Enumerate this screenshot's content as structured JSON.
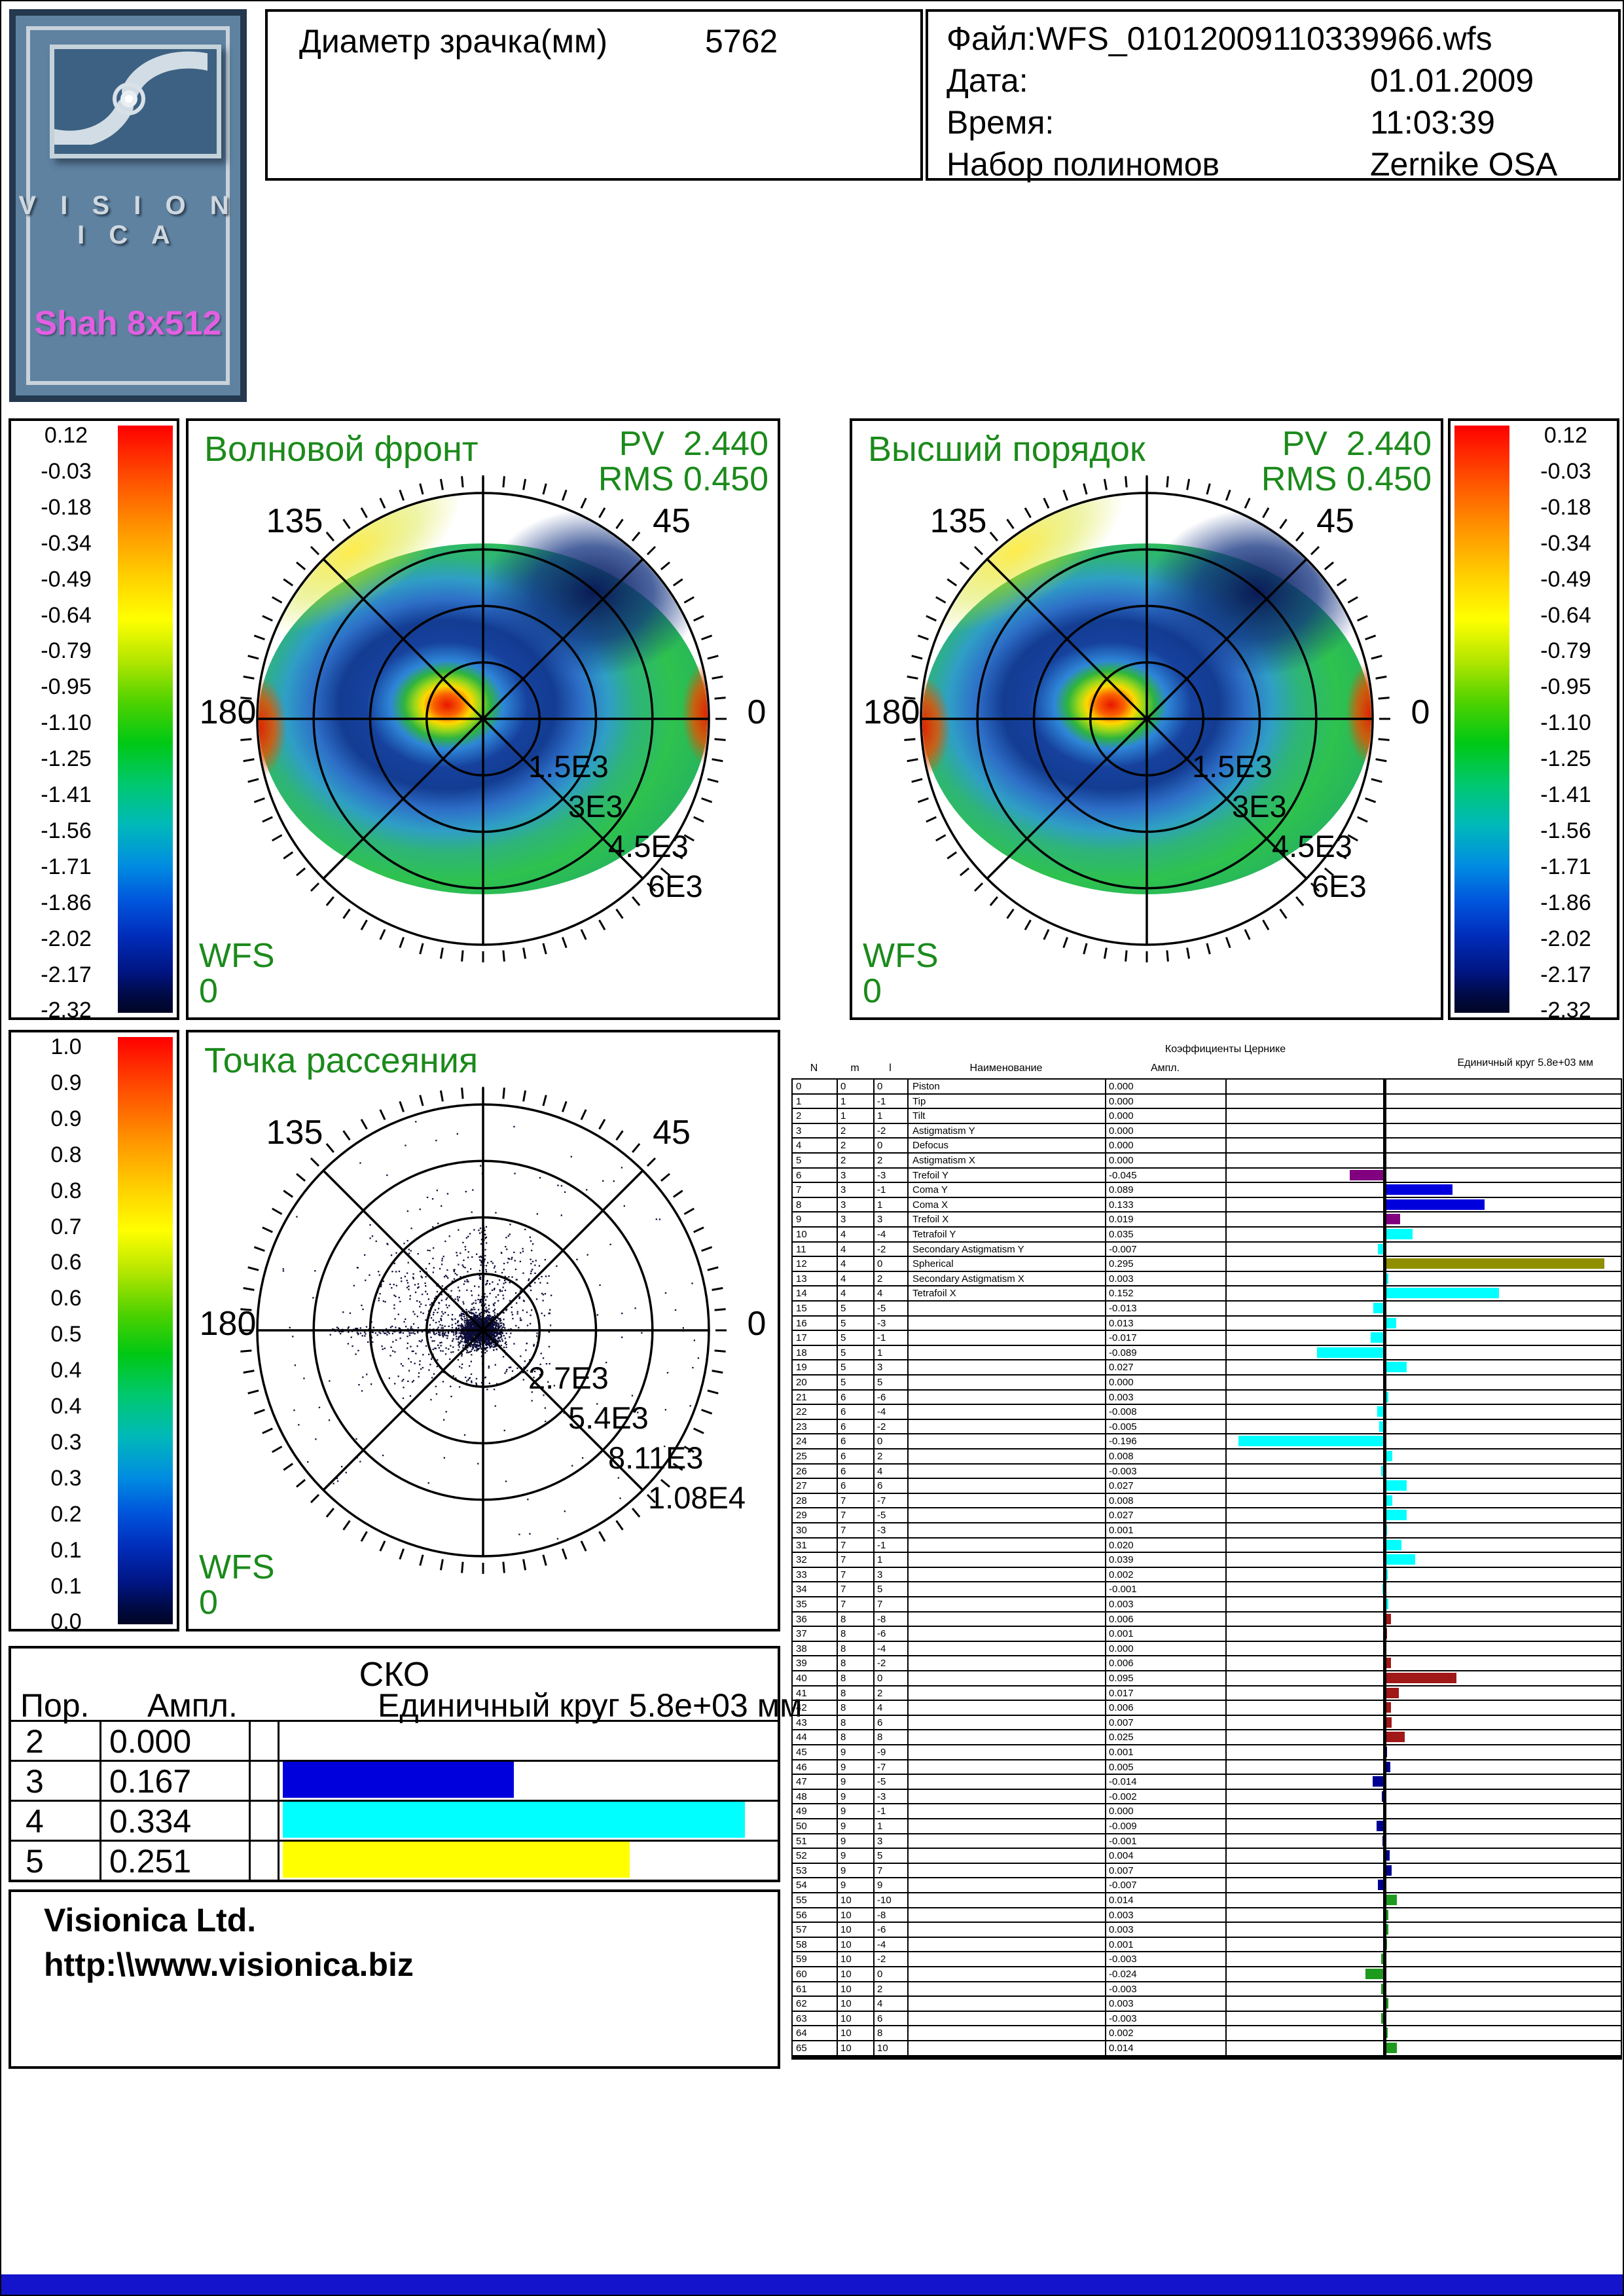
{
  "logo": {
    "brand": "V I S I O N I C A",
    "model": "Shah 8x512"
  },
  "pupil": {
    "label": "Диаметр зрачка(мм)",
    "value": "5762"
  },
  "file_info": {
    "file_line": "Файл:WFS_01012009110339966.wfs",
    "date_label": "Дата:",
    "date_value": "01.01.2009",
    "time_label": "Время:",
    "time_value": "11:03:39",
    "poly_label": "Набор полиномов",
    "poly_value": "Zernike OSA"
  },
  "colors": {
    "green_text": "#1b8a1b",
    "scatter_dot": "#0c0c38",
    "bottom_bar": "#1414cc",
    "zernike_palette": {
      "purple": "#800080",
      "blue": "#0000dd",
      "cyan": "#00ffff",
      "olive": "#8f8f00",
      "darkred": "#a01818",
      "navy": "#000090",
      "green": "#1e9a1e"
    }
  },
  "colorbar_wavefront": {
    "labels": [
      "0.12",
      "-0.03",
      "-0.18",
      "-0.34",
      "-0.49",
      "-0.64",
      "-0.79",
      "-0.95",
      "-1.10",
      "-1.25",
      "-1.41",
      "-1.56",
      "-1.71",
      "-1.86",
      "-2.02",
      "-2.17",
      "-2.32"
    ]
  },
  "colorbar_spot": {
    "labels": [
      "1.0",
      "0.9",
      "0.9",
      "0.8",
      "0.8",
      "0.7",
      "0.6",
      "0.6",
      "0.5",
      "0.4",
      "0.4",
      "0.3",
      "0.3",
      "0.2",
      "0.1",
      "0.1",
      "0.0"
    ]
  },
  "panels": {
    "wavefront": {
      "title": "Волновой фронт",
      "pv_label": "PV",
      "pv_value": "2.440",
      "rms_label": "RMS",
      "rms_value": "0.450",
      "wfs_label": "WFS",
      "wfs_value": "0",
      "angle_labels": [
        "135",
        "45",
        "180",
        "0"
      ],
      "radial_labels": [
        "1.5E3",
        "3E3",
        "4.5E3",
        "6E3"
      ]
    },
    "higher_order": {
      "title": "Высший порядок",
      "pv_label": "PV",
      "pv_value": "2.440",
      "rms_label": "RMS",
      "rms_value": "0.450",
      "wfs_label": "WFS",
      "wfs_value": "0",
      "angle_labels": [
        "135",
        "45",
        "180",
        "0"
      ],
      "radial_labels": [
        "1.5E3",
        "3E3",
        "4.5E3",
        "6E3"
      ]
    },
    "spot": {
      "title": "Точка рассеяния",
      "wfs_label": "WFS",
      "wfs_value": "0",
      "angle_labels": [
        "135",
        "45",
        "180",
        "0"
      ],
      "radial_labels": [
        "2.7E3",
        "5.4E3",
        "8.11E3",
        "1.08E4"
      ]
    }
  },
  "sko": {
    "title": "СКО",
    "col_order": "Пор.",
    "col_ampl": "Ампл.",
    "col_unit": "Единичный круг 5.8e+03 мм",
    "rows": [
      {
        "order": "2",
        "ampl": "0.000",
        "value": 0.0,
        "color": "none"
      },
      {
        "order": "3",
        "ampl": "0.167",
        "value": 0.167,
        "color": "#0000dd"
      },
      {
        "order": "4",
        "ampl": "0.334",
        "value": 0.334,
        "color": "#00ffff"
      },
      {
        "order": "5",
        "ampl": "0.251",
        "value": 0.251,
        "color": "#ffff00"
      }
    ]
  },
  "company": {
    "name": "Visionica Ltd.",
    "url": "http:\\\\www.visionica.biz"
  },
  "zernike": {
    "header": "Коэффициенты Цернике",
    "unit_header": "Единичный круг 5.8e+03 мм",
    "col_n": "N",
    "col_m": "m",
    "col_l": "l",
    "col_name": "Наименование",
    "col_ampl": "Ампл.",
    "rows": [
      {
        "n": "0",
        "m": "0",
        "l": "0",
        "name": "Piston",
        "a": "0.000"
      },
      {
        "n": "1",
        "m": "1",
        "l": "-1",
        "name": "Tip",
        "a": "0.000"
      },
      {
        "n": "2",
        "m": "1",
        "l": "1",
        "name": "Tilt",
        "a": "0.000"
      },
      {
        "n": "3",
        "m": "2",
        "l": "-2",
        "name": "Astigmatism Y",
        "a": "0.000"
      },
      {
        "n": "4",
        "m": "2",
        "l": "0",
        "name": "Defocus",
        "a": "0.000"
      },
      {
        "n": "5",
        "m": "2",
        "l": "2",
        "name": "Astigmatism X",
        "a": "0.000"
      },
      {
        "n": "6",
        "m": "3",
        "l": "-3",
        "name": "Trefoil Y",
        "a": "-0.045"
      },
      {
        "n": "7",
        "m": "3",
        "l": "-1",
        "name": "Coma Y",
        "a": "0.089"
      },
      {
        "n": "8",
        "m": "3",
        "l": "1",
        "name": "Coma X",
        "a": "0.133"
      },
      {
        "n": "9",
        "m": "3",
        "l": "3",
        "name": "Trefoil X",
        "a": "0.019"
      },
      {
        "n": "10",
        "m": "4",
        "l": "-4",
        "name": "Tetrafoil Y",
        "a": "0.035"
      },
      {
        "n": "11",
        "m": "4",
        "l": "-2",
        "name": "Secondary Astigmatism Y",
        "a": "-0.007"
      },
      {
        "n": "12",
        "m": "4",
        "l": "0",
        "name": "Spherical",
        "a": "0.295"
      },
      {
        "n": "13",
        "m": "4",
        "l": "2",
        "name": "Secondary Astigmatism X",
        "a": "0.003"
      },
      {
        "n": "14",
        "m": "4",
        "l": "4",
        "name": "Tetrafoil X",
        "a": "0.152"
      },
      {
        "n": "15",
        "m": "5",
        "l": "-5",
        "name": "",
        "a": "-0.013"
      },
      {
        "n": "16",
        "m": "5",
        "l": "-3",
        "name": "",
        "a": "0.013"
      },
      {
        "n": "17",
        "m": "5",
        "l": "-1",
        "name": "",
        "a": "-0.017"
      },
      {
        "n": "18",
        "m": "5",
        "l": "1",
        "name": "",
        "a": "-0.089"
      },
      {
        "n": "19",
        "m": "5",
        "l": "3",
        "name": "",
        "a": "0.027"
      },
      {
        "n": "20",
        "m": "5",
        "l": "5",
        "name": "",
        "a": "0.000"
      },
      {
        "n": "21",
        "m": "6",
        "l": "-6",
        "name": "",
        "a": "0.003"
      },
      {
        "n": "22",
        "m": "6",
        "l": "-4",
        "name": "",
        "a": "-0.008"
      },
      {
        "n": "23",
        "m": "6",
        "l": "-2",
        "name": "",
        "a": "-0.005"
      },
      {
        "n": "24",
        "m": "6",
        "l": "0",
        "name": "",
        "a": "-0.196"
      },
      {
        "n": "25",
        "m": "6",
        "l": "2",
        "name": "",
        "a": "0.008"
      },
      {
        "n": "26",
        "m": "6",
        "l": "4",
        "name": "",
        "a": "-0.003"
      },
      {
        "n": "27",
        "m": "6",
        "l": "6",
        "name": "",
        "a": "0.027"
      },
      {
        "n": "28",
        "m": "7",
        "l": "-7",
        "name": "",
        "a": "0.008"
      },
      {
        "n": "29",
        "m": "7",
        "l": "-5",
        "name": "",
        "a": "0.027"
      },
      {
        "n": "30",
        "m": "7",
        "l": "-3",
        "name": "",
        "a": "0.001"
      },
      {
        "n": "31",
        "m": "7",
        "l": "-1",
        "name": "",
        "a": "0.020"
      },
      {
        "n": "32",
        "m": "7",
        "l": "1",
        "name": "",
        "a": "0.039"
      },
      {
        "n": "33",
        "m": "7",
        "l": "3",
        "name": "",
        "a": "0.002"
      },
      {
        "n": "34",
        "m": "7",
        "l": "5",
        "name": "",
        "a": "-0.001"
      },
      {
        "n": "35",
        "m": "7",
        "l": "7",
        "name": "",
        "a": "0.003"
      },
      {
        "n": "36",
        "m": "8",
        "l": "-8",
        "name": "",
        "a": "0.006"
      },
      {
        "n": "37",
        "m": "8",
        "l": "-6",
        "name": "",
        "a": "0.001"
      },
      {
        "n": "38",
        "m": "8",
        "l": "-4",
        "name": "",
        "a": "0.000"
      },
      {
        "n": "39",
        "m": "8",
        "l": "-2",
        "name": "",
        "a": "0.006"
      },
      {
        "n": "40",
        "m": "8",
        "l": "0",
        "name": "",
        "a": "0.095"
      },
      {
        "n": "41",
        "m": "8",
        "l": "2",
        "name": "",
        "a": "0.017"
      },
      {
        "n": "42",
        "m": "8",
        "l": "4",
        "name": "",
        "a": "0.006"
      },
      {
        "n": "43",
        "m": "8",
        "l": "6",
        "name": "",
        "a": "0.007"
      },
      {
        "n": "44",
        "m": "8",
        "l": "8",
        "name": "",
        "a": "0.025"
      },
      {
        "n": "45",
        "m": "9",
        "l": "-9",
        "name": "",
        "a": "0.001"
      },
      {
        "n": "46",
        "m": "9",
        "l": "-7",
        "name": "",
        "a": "0.005"
      },
      {
        "n": "47",
        "m": "9",
        "l": "-5",
        "name": "",
        "a": "-0.014"
      },
      {
        "n": "48",
        "m": "9",
        "l": "-3",
        "name": "",
        "a": "-0.002"
      },
      {
        "n": "49",
        "m": "9",
        "l": "-1",
        "name": "",
        "a": "0.000"
      },
      {
        "n": "50",
        "m": "9",
        "l": "1",
        "name": "",
        "a": "-0.009"
      },
      {
        "n": "51",
        "m": "9",
        "l": "3",
        "name": "",
        "a": "-0.001"
      },
      {
        "n": "52",
        "m": "9",
        "l": "5",
        "name": "",
        "a": "0.004"
      },
      {
        "n": "53",
        "m": "9",
        "l": "7",
        "name": "",
        "a": "0.007"
      },
      {
        "n": "54",
        "m": "9",
        "l": "9",
        "name": "",
        "a": "-0.007"
      },
      {
        "n": "55",
        "m": "10",
        "l": "-10",
        "name": "",
        "a": "0.014"
      },
      {
        "n": "56",
        "m": "10",
        "l": "-8",
        "name": "",
        "a": "0.003"
      },
      {
        "n": "57",
        "m": "10",
        "l": "-6",
        "name": "",
        "a": "0.003"
      },
      {
        "n": "58",
        "m": "10",
        "l": "-4",
        "name": "",
        "a": "0.001"
      },
      {
        "n": "59",
        "m": "10",
        "l": "-2",
        "name": "",
        "a": "-0.003"
      },
      {
        "n": "60",
        "m": "10",
        "l": "0",
        "name": "",
        "a": "-0.024"
      },
      {
        "n": "61",
        "m": "10",
        "l": "2",
        "name": "",
        "a": "-0.003"
      },
      {
        "n": "62",
        "m": "10",
        "l": "4",
        "name": "",
        "a": "0.003"
      },
      {
        "n": "63",
        "m": "10",
        "l": "6",
        "name": "",
        "a": "-0.003"
      },
      {
        "n": "64",
        "m": "10",
        "l": "8",
        "name": "",
        "a": "0.002"
      },
      {
        "n": "65",
        "m": "10",
        "l": "10",
        "name": "",
        "a": "0.014"
      }
    ]
  },
  "chart_data": [
    {
      "type": "heatmap",
      "subtype": "polar-wavefront-map",
      "title": "Волновой фронт",
      "pv": 2.44,
      "rms": 0.45,
      "radial_tick_labels": [
        "1.5E3",
        "3E3",
        "4.5E3",
        "6E3"
      ],
      "angle_labels": [
        135,
        45,
        180,
        0
      ],
      "colorbar_ticks": [
        0.12,
        -0.03,
        -0.18,
        -0.34,
        -0.49,
        -0.64,
        -0.79,
        -0.95,
        -1.1,
        -1.25,
        -1.41,
        -1.56,
        -1.71,
        -1.86,
        -2.02,
        -2.17,
        -2.32
      ]
    },
    {
      "type": "heatmap",
      "subtype": "polar-wavefront-map",
      "title": "Высший порядок",
      "pv": 2.44,
      "rms": 0.45,
      "radial_tick_labels": [
        "1.5E3",
        "3E3",
        "4.5E3",
        "6E3"
      ],
      "angle_labels": [
        135,
        45,
        180,
        0
      ],
      "colorbar_ticks": [
        0.12,
        -0.03,
        -0.18,
        -0.34,
        -0.49,
        -0.64,
        -0.79,
        -0.95,
        -1.1,
        -1.25,
        -1.41,
        -1.56,
        -1.71,
        -1.86,
        -2.02,
        -2.17,
        -2.32
      ]
    },
    {
      "type": "scatter",
      "subtype": "polar-spot-diagram",
      "title": "Точка рассеяния",
      "radial_tick_labels": [
        "2.7E3",
        "5.4E3",
        "8.11E3",
        "1.08E4"
      ],
      "angle_labels": [
        135,
        45,
        180,
        0
      ],
      "colorbar_ticks": [
        1.0,
        0.9,
        0.9,
        0.8,
        0.8,
        0.7,
        0.6,
        0.6,
        0.5,
        0.4,
        0.4,
        0.3,
        0.3,
        0.2,
        0.1,
        0.1,
        0.0
      ]
    },
    {
      "type": "bar",
      "title": "СКО",
      "xlabel": "Пор.",
      "unit": "Единичный круг 5.8e+03 мм",
      "categories": [
        "2",
        "3",
        "4",
        "5"
      ],
      "values": [
        0.0,
        0.167,
        0.334,
        0.251
      ]
    },
    {
      "type": "bar",
      "title": "Коэффициенты Цернике",
      "xlabel": "N",
      "unit": "Единичный круг 5.8e+03 мм",
      "categories": [
        0,
        1,
        2,
        3,
        4,
        5,
        6,
        7,
        8,
        9,
        10,
        11,
        12,
        13,
        14,
        15,
        16,
        17,
        18,
        19,
        20,
        21,
        22,
        23,
        24,
        25,
        26,
        27,
        28,
        29,
        30,
        31,
        32,
        33,
        34,
        35,
        36,
        37,
        38,
        39,
        40,
        41,
        42,
        43,
        44,
        45,
        46,
        47,
        48,
        49,
        50,
        51,
        52,
        53,
        54,
        55,
        56,
        57,
        58,
        59,
        60,
        61,
        62,
        63,
        64,
        65
      ],
      "values": [
        0,
        0,
        0,
        0,
        0,
        0,
        -0.045,
        0.089,
        0.133,
        0.019,
        0.035,
        -0.007,
        0.295,
        0.003,
        0.152,
        -0.013,
        0.013,
        -0.017,
        -0.089,
        0.027,
        0,
        0.003,
        -0.008,
        -0.005,
        -0.196,
        0.008,
        -0.003,
        0.027,
        0.008,
        0.027,
        0.001,
        0.02,
        0.039,
        0.002,
        -0.001,
        0.003,
        0.006,
        0.001,
        0,
        0.006,
        0.095,
        0.017,
        0.006,
        0.007,
        0.025,
        0.001,
        0.005,
        -0.014,
        -0.002,
        0,
        -0.009,
        -0.001,
        0.004,
        0.007,
        -0.007,
        0.014,
        0.003,
        0.003,
        0.001,
        -0.003,
        -0.024,
        -0.003,
        0.003,
        -0.003,
        0.002,
        0.014
      ]
    }
  ]
}
